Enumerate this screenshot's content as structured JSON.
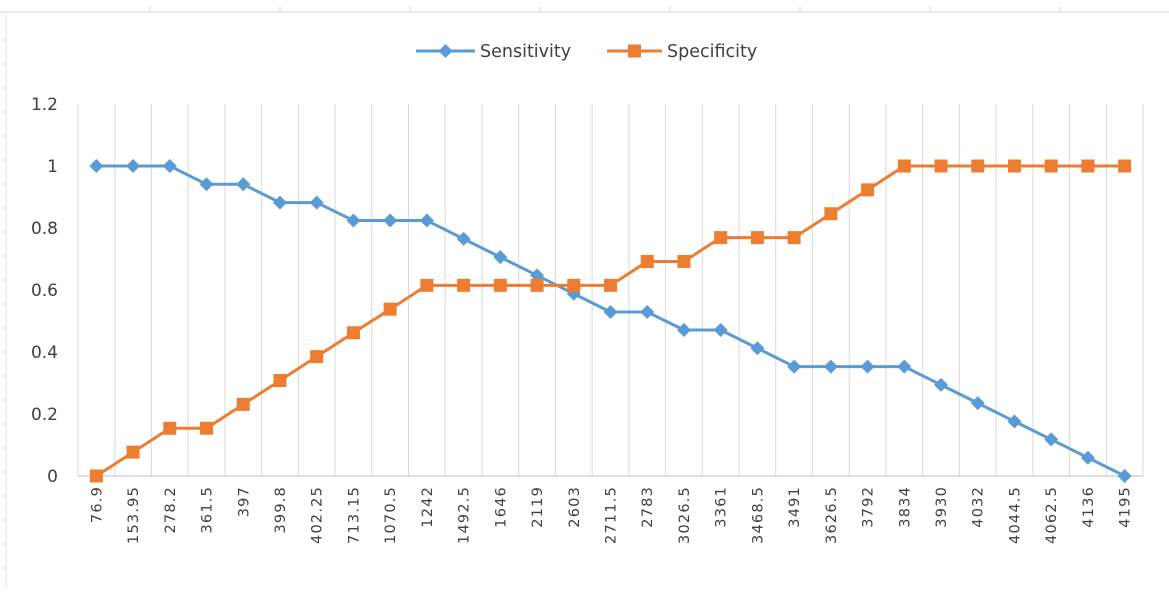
{
  "chart_data": {
    "type": "line",
    "title": "",
    "xlabel": "",
    "ylabel": "",
    "categories": [
      "76.9",
      "153.95",
      "278.2",
      "361.5",
      "397",
      "399.8",
      "402.25",
      "713.15",
      "1070.5",
      "1242",
      "1492.5",
      "1646",
      "2119",
      "2603",
      "2711.5",
      "2783",
      "3026.5",
      "3361",
      "3468.5",
      "3491",
      "3626.5",
      "3792",
      "3834",
      "3930",
      "4032",
      "4044.5",
      "4062.5",
      "4136",
      "4195"
    ],
    "yticks": [
      "0",
      "0.2",
      "0.4",
      "0.6",
      "0.8",
      "1",
      "1.2"
    ],
    "ylim": [
      0,
      1.2
    ],
    "grid": "vertical gridlines",
    "legend": "top-center",
    "series": [
      {
        "name": "Sensitivity",
        "color": "#5B9BD5",
        "marker": "diamond",
        "values": [
          1,
          1,
          1,
          0.941,
          0.941,
          0.882,
          0.882,
          0.824,
          0.824,
          0.824,
          0.765,
          0.706,
          0.647,
          0.588,
          0.529,
          0.529,
          0.471,
          0.471,
          0.412,
          0.353,
          0.353,
          0.353,
          0.353,
          0.294,
          0.235,
          0.176,
          0.118,
          0.059,
          0
        ]
      },
      {
        "name": "Specificity",
        "color": "#ED7D31",
        "marker": "square",
        "values": [
          0,
          0.077,
          0.154,
          0.154,
          0.231,
          0.308,
          0.385,
          0.462,
          0.538,
          0.615,
          0.615,
          0.615,
          0.615,
          0.615,
          0.615,
          0.692,
          0.692,
          0.769,
          0.769,
          0.769,
          0.846,
          0.923,
          1,
          1,
          1,
          1,
          1,
          1,
          1
        ]
      }
    ]
  }
}
